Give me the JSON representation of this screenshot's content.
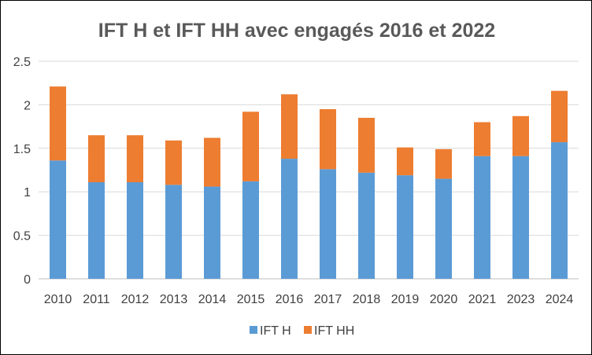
{
  "chart_data": {
    "type": "bar",
    "stacked": true,
    "title": "IFT H et IFT HH avec engagés 2016 et 2022",
    "xlabel": "",
    "ylabel": "",
    "categories": [
      "2010",
      "2011",
      "2012",
      "2013",
      "2014",
      "2015",
      "2016",
      "2017",
      "2018",
      "2019",
      "2020",
      "2021",
      "2023",
      "2024"
    ],
    "series": [
      {
        "name": "IFT H",
        "color": "#5b9bd5",
        "values": [
          1.36,
          1.11,
          1.11,
          1.08,
          1.06,
          1.12,
          1.38,
          1.26,
          1.22,
          1.19,
          1.15,
          1.41,
          1.41,
          1.57
        ]
      },
      {
        "name": "IFT HH",
        "color": "#ed7d31",
        "values": [
          0.85,
          0.54,
          0.54,
          0.51,
          0.56,
          0.8,
          0.74,
          0.69,
          0.63,
          0.32,
          0.34,
          0.39,
          0.46,
          0.59
        ]
      }
    ],
    "ylim": [
      0,
      2.5
    ],
    "yticks": [
      "0",
      "0.5",
      "1",
      "1.5",
      "2",
      "2.5"
    ],
    "grid": true,
    "legend": "bottom"
  }
}
